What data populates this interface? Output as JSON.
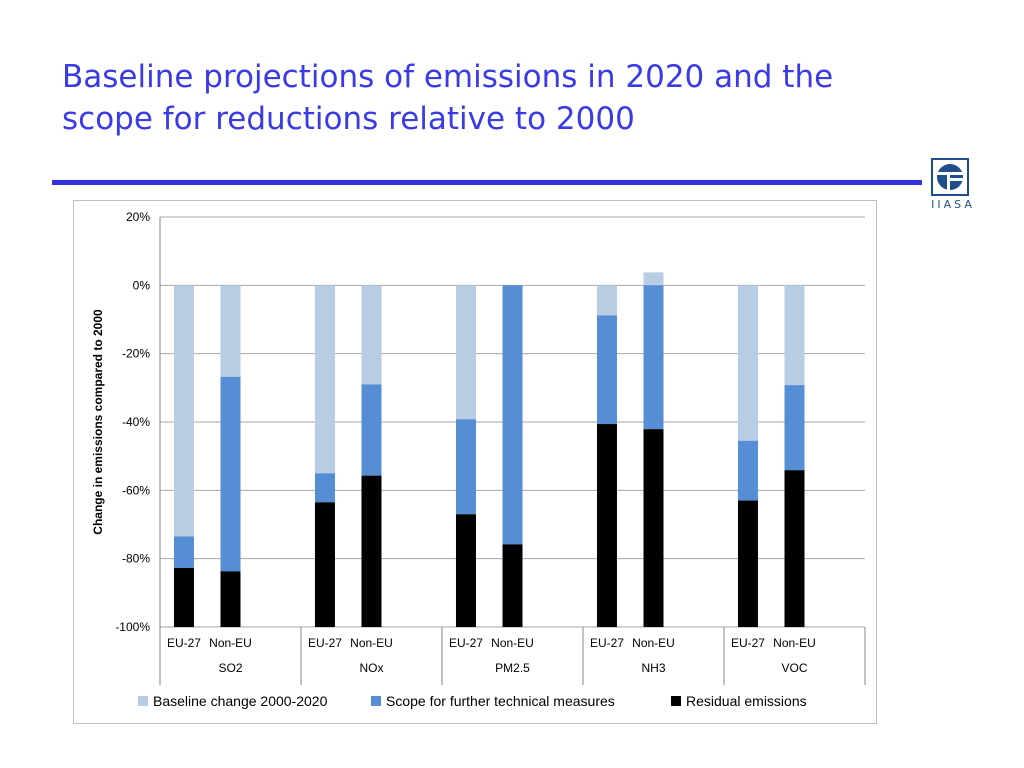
{
  "slide": {
    "title_line1": "Baseline projections of emissions in 2020 and the",
    "title_line2": "scope for reductions relative to 2000"
  },
  "logo": {
    "text": "IIASA"
  },
  "chart_data": {
    "type": "bar",
    "stacked": true,
    "ylabel": "Change in emissions compared to 2000",
    "ylim": [
      -100,
      20
    ],
    "yticks": [
      20,
      0,
      -20,
      -40,
      -60,
      -80,
      -100
    ],
    "ytick_labels": [
      "20%",
      "0%",
      "-20%",
      "-40%",
      "-60%",
      "-80%",
      "-100%"
    ],
    "grid": true,
    "legend_position": "bottom",
    "groups": [
      "SO2",
      "NOx",
      "PM2.5",
      "NH3",
      "VOC"
    ],
    "subcategories": [
      "EU-27",
      "Non-EU"
    ],
    "series": [
      {
        "name": "Baseline change 2000-2020",
        "color": "#b8cce4",
        "values": [
          -73.5,
          -26.8,
          -55.0,
          -29.0,
          -39.2,
          0.0,
          -8.8,
          3.8,
          -45.5,
          -29.2
        ]
      },
      {
        "name": "Scope for further technical measures",
        "color": "#558ed5",
        "values": [
          -9.2,
          -56.9,
          -8.5,
          -26.7,
          -27.8,
          -75.8,
          -31.8,
          -42.1,
          -17.5,
          -24.9
        ]
      },
      {
        "name": "Residual emissions",
        "color": "#000000",
        "values": [
          -17.3,
          -16.3,
          -36.5,
          -44.3,
          -33.0,
          -24.2,
          -59.4,
          -57.9,
          -37.0,
          -45.9
        ]
      }
    ]
  }
}
